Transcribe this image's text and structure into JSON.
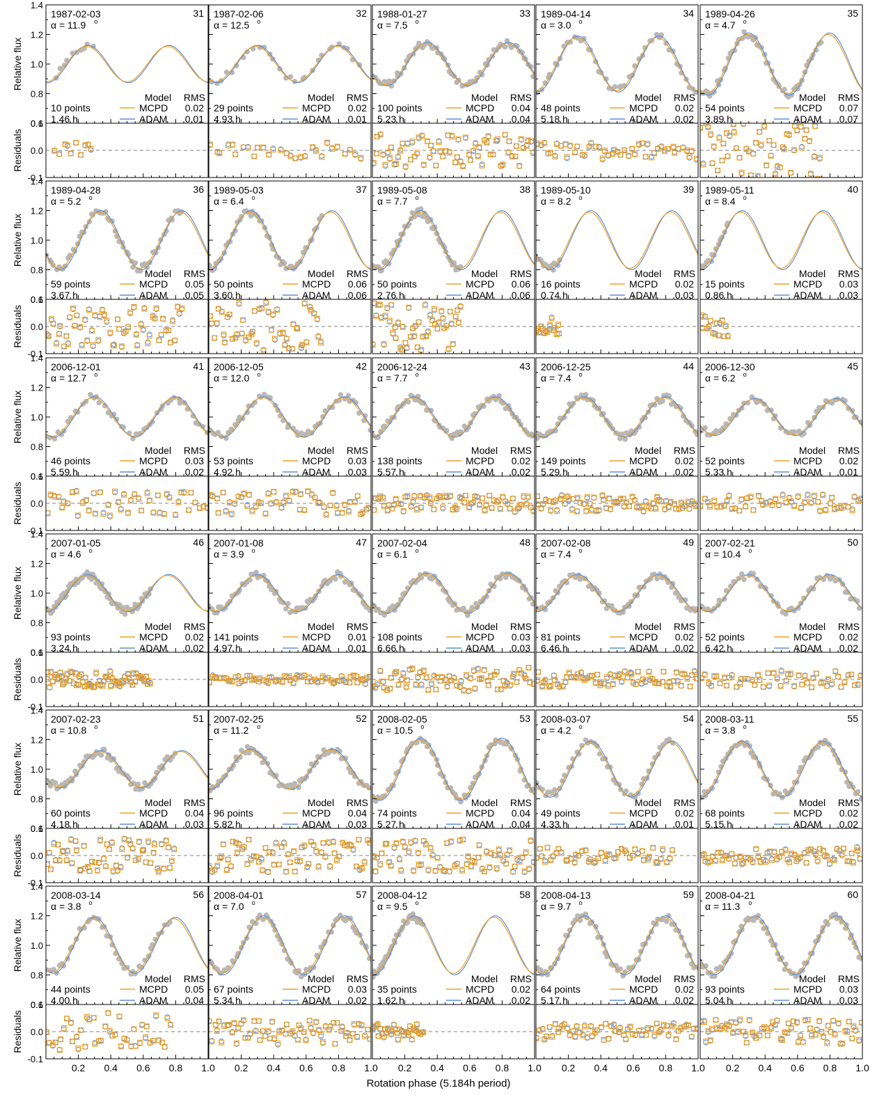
{
  "figure": {
    "xlabel": "Rotation phase (5.184h period)",
    "top_ylabel": "Relative flux",
    "bottom_ylabel": "Residuals",
    "model_header": "Model",
    "rms_header": "RMS",
    "model_names": [
      "MCPD",
      "ADAM"
    ],
    "points_suffix": "points",
    "hours_suffix": "h",
    "alpha_symbol": "α =",
    "degree_symbol": "o",
    "colors": {
      "mcpd": "#f0a020",
      "adam": "#5b8fe0",
      "points": "#b8b8b8",
      "baseline": "#555555"
    }
  },
  "chart_data": {
    "type": "scatter",
    "x_range": [
      0,
      1.0
    ],
    "flux_ylim": [
      0.6,
      1.4
    ],
    "flux_yticks": [
      "0.6",
      "0.8",
      "1.0",
      "1.2",
      "1.4"
    ],
    "residual_ylim": [
      -0.1,
      0.1
    ],
    "residual_yticks": [
      "-0.1",
      "0.0",
      "0.1"
    ],
    "xticks": [
      "0.2",
      "0.4",
      "0.6",
      "0.8",
      "1.0"
    ],
    "panels": [
      {
        "id": "31",
        "date": "1987-02-03",
        "alpha": "11.9",
        "points": "10",
        "hours": "1.46",
        "rms_mcpd": "0.02",
        "rms_adam": "0.01",
        "amp": 0.12,
        "cov": [
          0.05,
          0.3
        ]
      },
      {
        "id": "32",
        "date": "1987-02-06",
        "alpha": "12.5",
        "points": "29",
        "hours": "4.93",
        "rms_mcpd": "0.02",
        "rms_adam": "0.01",
        "amp": 0.12,
        "cov": [
          0,
          0.95
        ]
      },
      {
        "id": "33",
        "date": "1988-01-27",
        "alpha": "7.5",
        "points": "100",
        "hours": "5.23",
        "rms_mcpd": "0.04",
        "rms_adam": "0.04",
        "amp": 0.14,
        "cov": [
          0,
          1
        ]
      },
      {
        "id": "34",
        "date": "1989-04-14",
        "alpha": "3.0",
        "points": "48",
        "hours": "5.18",
        "rms_mcpd": "0.02",
        "rms_adam": "0.02",
        "amp": 0.18,
        "cov": [
          0,
          1
        ]
      },
      {
        "id": "35",
        "date": "1989-04-26",
        "alpha": "4.7",
        "points": "54",
        "hours": "3.89",
        "rms_mcpd": "0.07",
        "rms_adam": "0.07",
        "amp": 0.2,
        "cov": [
          0,
          0.75
        ]
      },
      {
        "id": "36",
        "date": "1989-04-28",
        "alpha": "5.2",
        "points": "59",
        "hours": "3.67",
        "rms_mcpd": "0.05",
        "rms_adam": "0.05",
        "amp": 0.19,
        "cov": [
          0,
          0.85
        ]
      },
      {
        "id": "37",
        "date": "1989-05-03",
        "alpha": "6.4",
        "points": "50",
        "hours": "3.60",
        "rms_mcpd": "0.06",
        "rms_adam": "0.06",
        "amp": 0.19,
        "cov": [
          0,
          0.7
        ]
      },
      {
        "id": "38",
        "date": "1989-05-08",
        "alpha": "7.7",
        "points": "50",
        "hours": "2.76",
        "rms_mcpd": "0.06",
        "rms_adam": "0.06",
        "amp": 0.19,
        "cov": [
          0,
          0.55
        ]
      },
      {
        "id": "39",
        "date": "1989-05-10",
        "alpha": "8.2",
        "points": "16",
        "hours": "0.74",
        "rms_mcpd": "0.02",
        "rms_adam": "0.03",
        "amp": 0.19,
        "cov": [
          0,
          0.15
        ]
      },
      {
        "id": "40",
        "date": "1989-05-11",
        "alpha": "8.4",
        "points": "15",
        "hours": "0.86",
        "rms_mcpd": "0.03",
        "rms_adam": "0.03",
        "amp": 0.19,
        "cov": [
          0,
          0.18
        ]
      },
      {
        "id": "41",
        "date": "2006-12-01",
        "alpha": "12.7",
        "points": "46",
        "hours": "5.59",
        "rms_mcpd": "0.03",
        "rms_adam": "0.02",
        "amp": 0.13,
        "cov": [
          0,
          1
        ]
      },
      {
        "id": "42",
        "date": "2006-12-05",
        "alpha": "12.0",
        "points": "53",
        "hours": "4.92",
        "rms_mcpd": "0.03",
        "rms_adam": "0.03",
        "amp": 0.13,
        "cov": [
          0,
          1
        ]
      },
      {
        "id": "43",
        "date": "2006-12-24",
        "alpha": "7.7",
        "points": "138",
        "hours": "5.57",
        "rms_mcpd": "0.02",
        "rms_adam": "0.02",
        "amp": 0.13,
        "cov": [
          0,
          1
        ]
      },
      {
        "id": "44",
        "date": "2006-12-25",
        "alpha": "7.4",
        "points": "149",
        "hours": "5.29",
        "rms_mcpd": "0.02",
        "rms_adam": "0.02",
        "amp": 0.13,
        "cov": [
          0,
          1
        ]
      },
      {
        "id": "45",
        "date": "2006-12-30",
        "alpha": "6.2",
        "points": "52",
        "hours": "5.33",
        "rms_mcpd": "0.02",
        "rms_adam": "0.01",
        "amp": 0.12,
        "cov": [
          0,
          1
        ]
      },
      {
        "id": "46",
        "date": "2007-01-05",
        "alpha": "4.6",
        "points": "93",
        "hours": "3.24",
        "rms_mcpd": "0.02",
        "rms_adam": "0.02",
        "amp": 0.12,
        "cov": [
          0,
          0.65
        ]
      },
      {
        "id": "47",
        "date": "2007-01-08",
        "alpha": "3.9",
        "points": "141",
        "hours": "4.97",
        "rms_mcpd": "0.01",
        "rms_adam": "0.01",
        "amp": 0.12,
        "cov": [
          0,
          1
        ]
      },
      {
        "id": "48",
        "date": "2007-02-04",
        "alpha": "6.1",
        "points": "108",
        "hours": "6.66",
        "rms_mcpd": "0.03",
        "rms_adam": "0.03",
        "amp": 0.13,
        "cov": [
          0,
          1
        ]
      },
      {
        "id": "49",
        "date": "2007-02-08",
        "alpha": "7.4",
        "points": "81",
        "hours": "6.46",
        "rms_mcpd": "0.02",
        "rms_adam": "0.02",
        "amp": 0.12,
        "cov": [
          0,
          1
        ]
      },
      {
        "id": "50",
        "date": "2007-02-21",
        "alpha": "10.4",
        "points": "52",
        "hours": "6.42",
        "rms_mcpd": "0.02",
        "rms_adam": "0.02",
        "amp": 0.12,
        "cov": [
          0,
          1
        ]
      },
      {
        "id": "51",
        "date": "2007-02-23",
        "alpha": "10.8",
        "points": "60",
        "hours": "4.18",
        "rms_mcpd": "0.04",
        "rms_adam": "0.03",
        "amp": 0.12,
        "cov": [
          0,
          0.8
        ]
      },
      {
        "id": "52",
        "date": "2007-02-25",
        "alpha": "11.2",
        "points": "96",
        "hours": "5.82",
        "rms_mcpd": "0.04",
        "rms_adam": "0.03",
        "amp": 0.13,
        "cov": [
          0,
          1
        ]
      },
      {
        "id": "53",
        "date": "2008-02-05",
        "alpha": "10.5",
        "points": "74",
        "hours": "5.27",
        "rms_mcpd": "0.04",
        "rms_adam": "0.04",
        "amp": 0.2,
        "cov": [
          0,
          1
        ]
      },
      {
        "id": "54",
        "date": "2008-03-07",
        "alpha": "4.2",
        "points": "49",
        "hours": "4.33",
        "rms_mcpd": "0.02",
        "rms_adam": "0.01",
        "amp": 0.18,
        "cov": [
          0,
          0.85
        ]
      },
      {
        "id": "55",
        "date": "2008-03-11",
        "alpha": "3.8",
        "points": "68",
        "hours": "5.15",
        "rms_mcpd": "0.02",
        "rms_adam": "0.02",
        "amp": 0.18,
        "cov": [
          0,
          1
        ]
      },
      {
        "id": "56",
        "date": "2008-03-14",
        "alpha": "3.8",
        "points": "44",
        "hours": "4.00",
        "rms_mcpd": "0.05",
        "rms_adam": "0.04",
        "amp": 0.18,
        "cov": [
          0,
          0.78
        ]
      },
      {
        "id": "57",
        "date": "2008-04-01",
        "alpha": "7.0",
        "points": "67",
        "hours": "5.34",
        "rms_mcpd": "0.03",
        "rms_adam": "0.02",
        "amp": 0.19,
        "cov": [
          0,
          1
        ]
      },
      {
        "id": "58",
        "date": "2008-04-12",
        "alpha": "9.5",
        "points": "35",
        "hours": "1.62",
        "rms_mcpd": "0.02",
        "rms_adam": "0.02",
        "amp": 0.19,
        "cov": [
          0,
          0.32
        ]
      },
      {
        "id": "59",
        "date": "2008-04-13",
        "alpha": "9.7",
        "points": "64",
        "hours": "5.17",
        "rms_mcpd": "0.02",
        "rms_adam": "0.02",
        "amp": 0.19,
        "cov": [
          0,
          1
        ]
      },
      {
        "id": "60",
        "date": "2008-04-21",
        "alpha": "11.3",
        "points": "93",
        "hours": "5.04",
        "rms_mcpd": "0.03",
        "rms_adam": "0.03",
        "amp": 0.19,
        "cov": [
          0,
          1
        ]
      }
    ]
  }
}
